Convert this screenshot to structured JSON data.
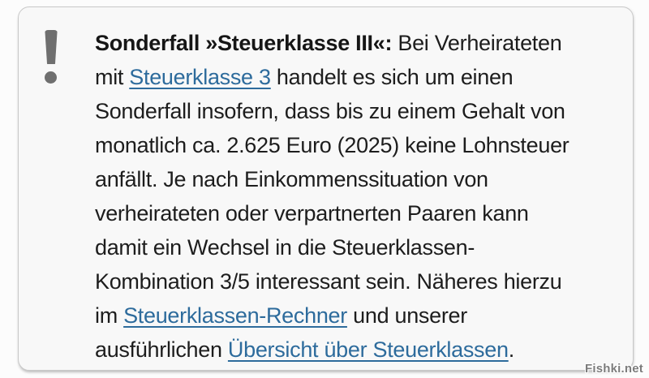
{
  "callout": {
    "icon": "exclamation-icon",
    "lines": [
      [
        {
          "type": "bold",
          "text": "Sonderfall »Steuerklasse III«:"
        },
        {
          "type": "text",
          "text": " Bei Verheirateten"
        }
      ],
      [
        {
          "type": "text",
          "text": "mit "
        },
        {
          "type": "link",
          "name": "steuerklasse-3-link",
          "text": "Steuerklasse 3"
        },
        {
          "type": "text",
          "text": " handelt es sich um einen"
        }
      ],
      [
        {
          "type": "text",
          "text": "Sonderfall insofern, dass bis zu einem Gehalt von"
        }
      ],
      [
        {
          "type": "text",
          "text": "monatlich ca. 2.625 Euro (2025) keine Lohnsteuer"
        }
      ],
      [
        {
          "type": "text",
          "text": "anfällt. Je nach Einkommenssituation von"
        }
      ],
      [
        {
          "type": "text",
          "text": "verheirateten oder verpartnerten Paaren kann"
        }
      ],
      [
        {
          "type": "text",
          "text": "damit ein Wechsel in die Steuerklassen-"
        }
      ],
      [
        {
          "type": "text",
          "text": "Kombination 3/5 interessant sein. Näheres hierzu"
        }
      ],
      [
        {
          "type": "text",
          "text": "im "
        },
        {
          "type": "link",
          "name": "steuerklassen-rechner-link",
          "text": "Steuerklassen-Rechner"
        },
        {
          "type": "text",
          "text": " und unserer"
        }
      ],
      [
        {
          "type": "text",
          "text": "ausführlichen "
        },
        {
          "type": "link",
          "name": "uebersicht-steuerklassen-link",
          "text": "Übersicht über Steuerklassen"
        },
        {
          "type": "text",
          "text": "."
        }
      ]
    ]
  },
  "watermark": "Fishki.net",
  "colors": {
    "link": "#2d6b9c",
    "icon": "#6f6f6f",
    "box_bg": "#f8f8f8",
    "box_border": "#c9c9c9",
    "text": "#1d1d1d"
  }
}
